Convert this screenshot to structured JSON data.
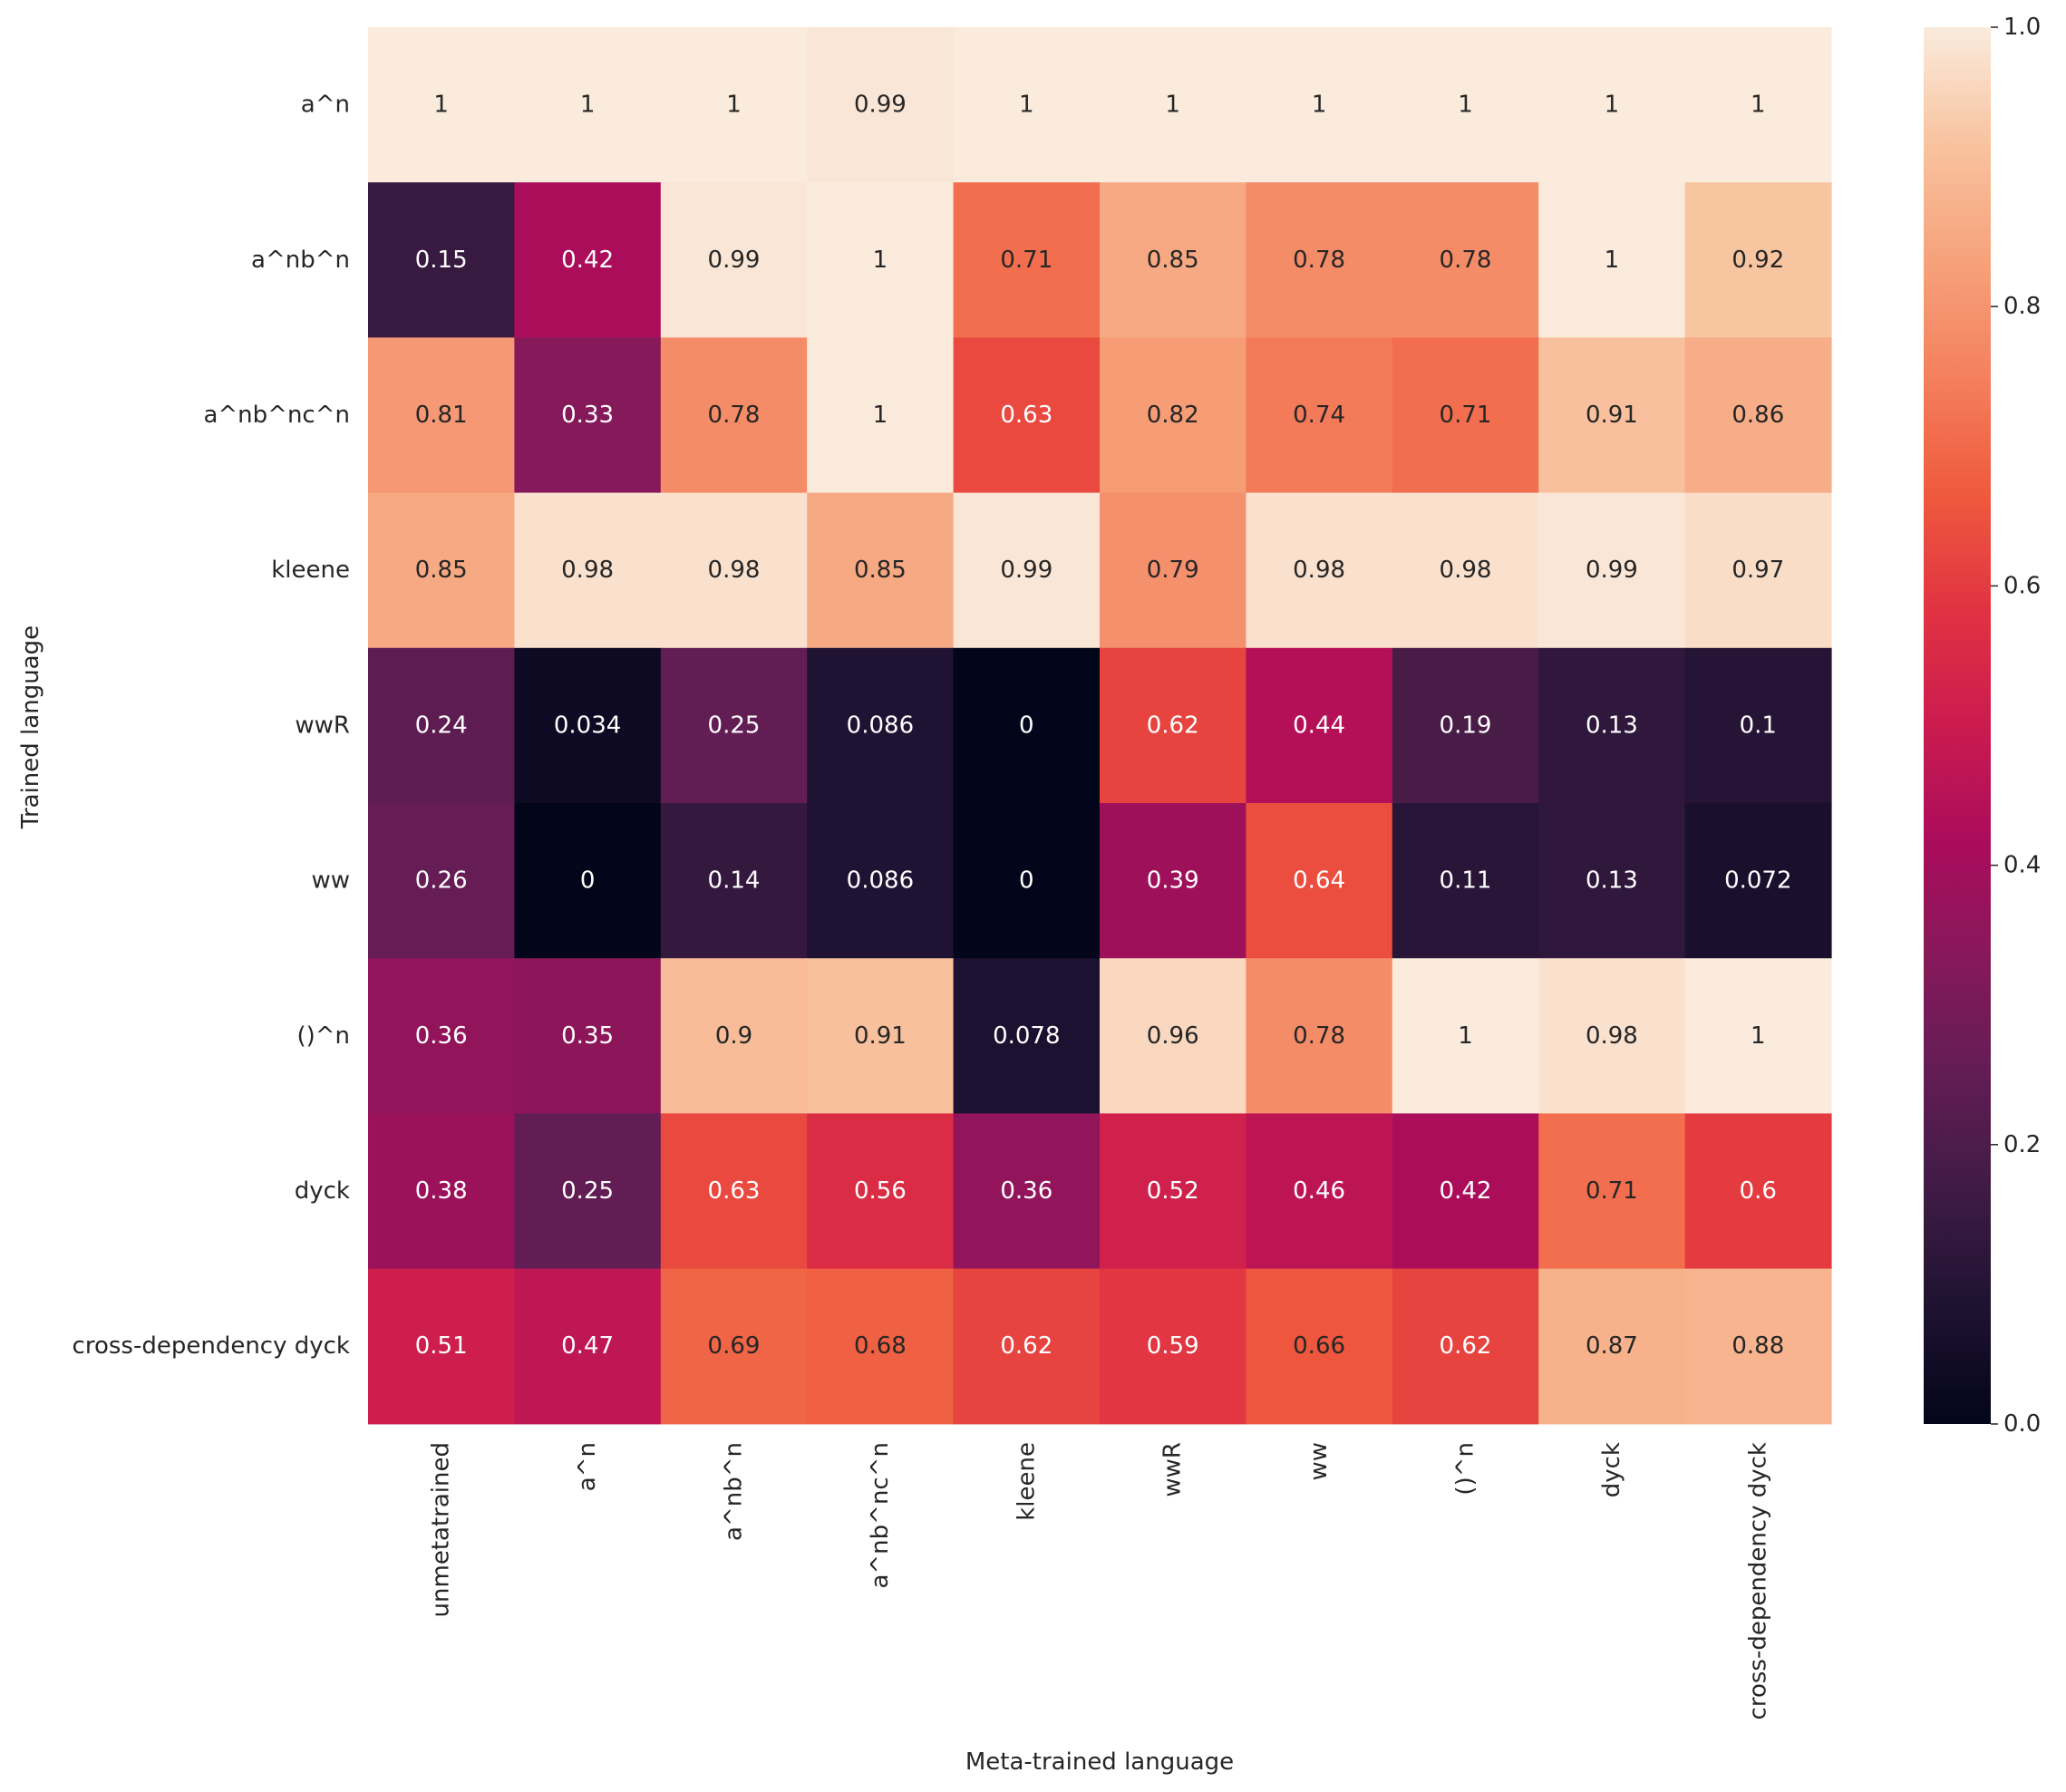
{
  "chart_data": {
    "type": "heatmap",
    "title": "",
    "xlabel": "Meta-trained language",
    "ylabel": "Trained language",
    "x_categories": [
      "unmetatrained",
      "a^n",
      "a^nb^n",
      "a^nb^nc^n",
      "kleene",
      "wwR",
      "ww",
      "()^n",
      "dyck",
      "cross-dependency dyck"
    ],
    "y_categories": [
      "a^n",
      "a^nb^n",
      "a^nb^nc^n",
      "kleene",
      "wwR",
      "ww",
      "()^n",
      "dyck",
      "cross-dependency dyck"
    ],
    "values": [
      [
        1,
        1,
        1,
        0.99,
        1,
        1,
        1,
        1,
        1,
        1
      ],
      [
        0.15,
        0.42,
        0.99,
        1,
        0.71,
        0.85,
        0.78,
        0.78,
        1,
        0.92
      ],
      [
        0.81,
        0.33,
        0.78,
        1,
        0.63,
        0.82,
        0.74,
        0.71,
        0.91,
        0.86
      ],
      [
        0.85,
        0.98,
        0.98,
        0.85,
        0.99,
        0.79,
        0.98,
        0.98,
        0.99,
        0.97
      ],
      [
        0.24,
        0.034,
        0.25,
        0.086,
        0,
        0.62,
        0.44,
        0.19,
        0.13,
        0.1
      ],
      [
        0.26,
        0,
        0.14,
        0.086,
        0,
        0.39,
        0.64,
        0.11,
        0.13,
        0.072
      ],
      [
        0.36,
        0.35,
        0.9,
        0.91,
        0.078,
        0.96,
        0.78,
        1,
        0.98,
        1
      ],
      [
        0.38,
        0.25,
        0.63,
        0.56,
        0.36,
        0.52,
        0.46,
        0.42,
        0.71,
        0.6
      ],
      [
        0.51,
        0.47,
        0.69,
        0.68,
        0.62,
        0.59,
        0.66,
        0.62,
        0.87,
        0.88
      ]
    ],
    "colorbar": {
      "range": [
        0.0,
        1.0
      ],
      "ticks": [
        0.0,
        0.2,
        0.4,
        0.6,
        0.8,
        1.0
      ],
      "tick_labels": [
        "0.0",
        "0.2",
        "0.4",
        "0.6",
        "0.8",
        "1.0"
      ],
      "colormap": "rocket",
      "colors": [
        "#03051a",
        "#1e1231",
        "#3f1b44",
        "#621d54",
        "#86195a",
        "#ab0c5c",
        "#cb1b4f",
        "#e13342",
        "#ef5a3d",
        "#f4805e",
        "#f6a27b",
        "#f8c39f",
        "#faebdd"
      ]
    },
    "label_colors": {
      "dark_text": "#262626",
      "light_text": "#ffffff"
    }
  }
}
